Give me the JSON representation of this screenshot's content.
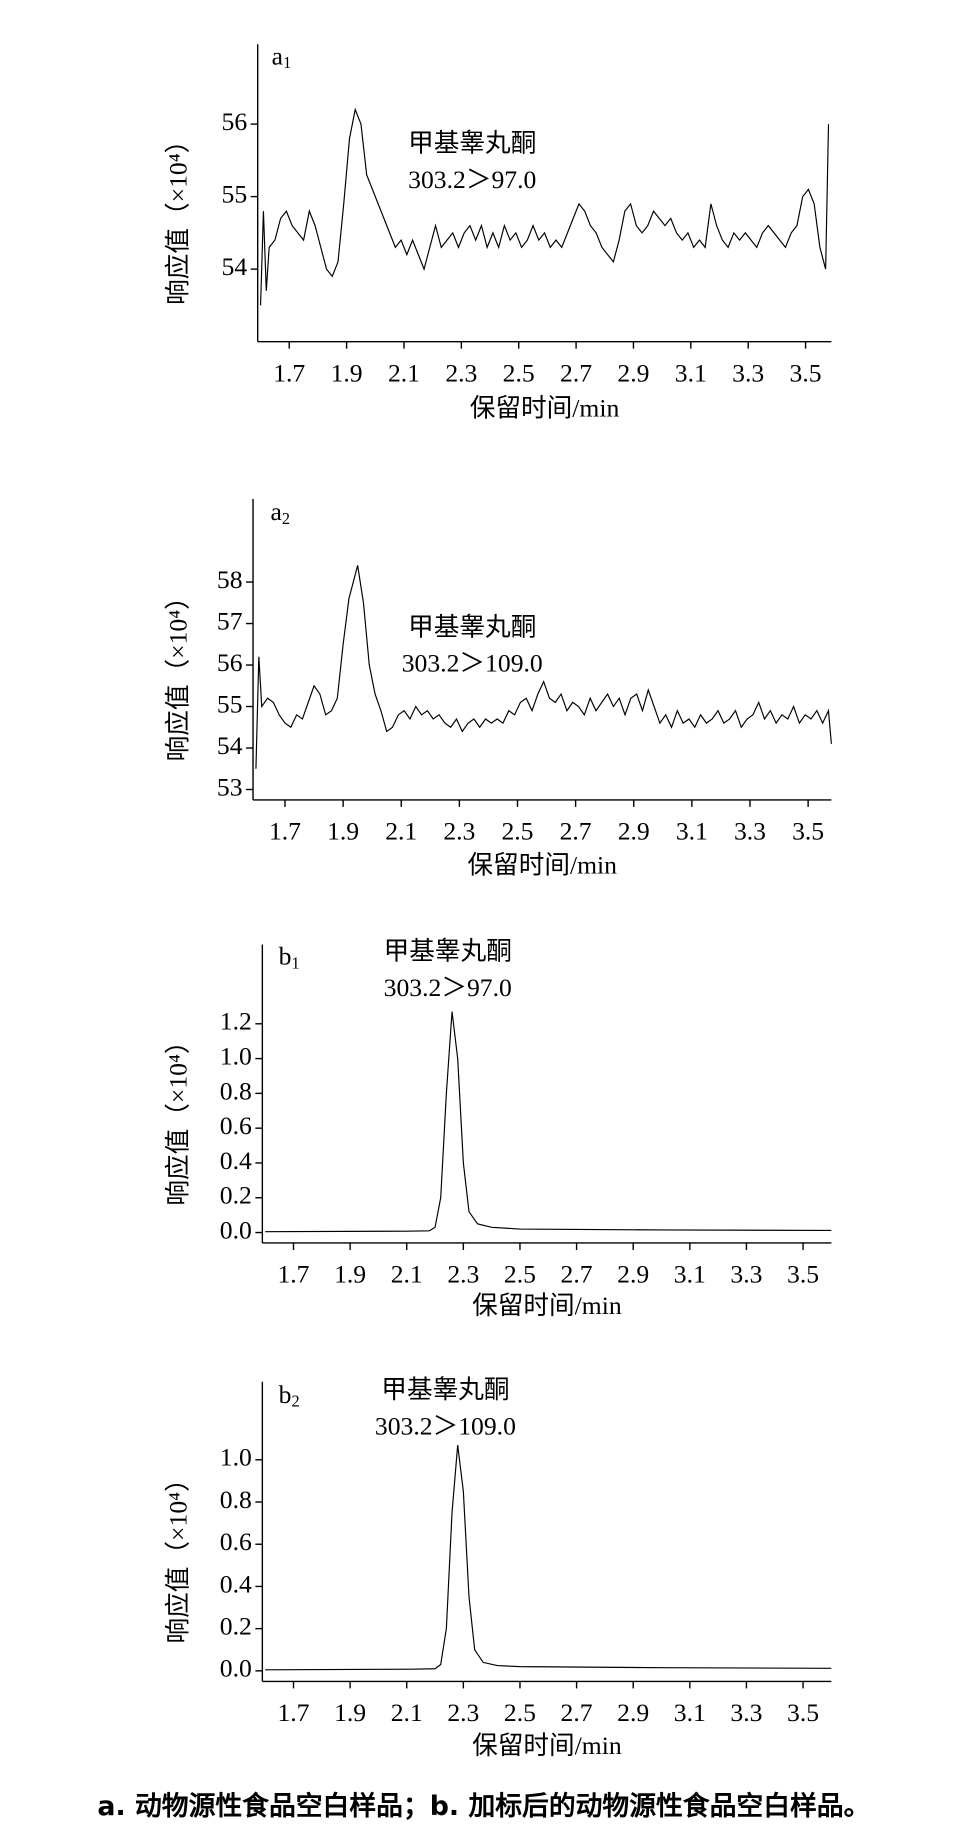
{
  "chart_data": [
    {
      "type": "line",
      "panel_letter": "a",
      "panel_index": "1",
      "compound": "甲基睾丸酮",
      "transition": "303.2＞97.0",
      "ylabel": "响应值（×10⁴）",
      "xlabel": "保留时间/min",
      "xlim": [
        1.59,
        3.59
      ],
      "ylim": [
        53.0,
        57.1
      ],
      "xticks": [
        1.7,
        1.9,
        2.1,
        2.3,
        2.5,
        2.7,
        2.9,
        3.1,
        3.3,
        3.5
      ],
      "yticks": [
        54,
        55,
        56
      ],
      "x": [
        1.6,
        1.61,
        1.62,
        1.63,
        1.65,
        1.67,
        1.69,
        1.71,
        1.73,
        1.75,
        1.77,
        1.79,
        1.81,
        1.83,
        1.85,
        1.87,
        1.89,
        1.91,
        1.93,
        1.95,
        1.97,
        1.99,
        2.01,
        2.03,
        2.05,
        2.07,
        2.09,
        2.11,
        2.13,
        2.15,
        2.17,
        2.19,
        2.21,
        2.23,
        2.25,
        2.27,
        2.29,
        2.31,
        2.33,
        2.35,
        2.37,
        2.39,
        2.41,
        2.43,
        2.45,
        2.47,
        2.49,
        2.51,
        2.53,
        2.55,
        2.57,
        2.59,
        2.61,
        2.63,
        2.65,
        2.67,
        2.69,
        2.71,
        2.73,
        2.75,
        2.77,
        2.79,
        2.81,
        2.83,
        2.85,
        2.87,
        2.89,
        2.91,
        2.93,
        2.95,
        2.97,
        2.99,
        3.01,
        3.03,
        3.05,
        3.07,
        3.09,
        3.11,
        3.13,
        3.15,
        3.17,
        3.19,
        3.21,
        3.23,
        3.25,
        3.27,
        3.29,
        3.31,
        3.33,
        3.35,
        3.37,
        3.39,
        3.41,
        3.43,
        3.45,
        3.47,
        3.49,
        3.51,
        3.53,
        3.55,
        3.57,
        3.58
      ],
      "values": [
        53.5,
        54.8,
        53.7,
        54.3,
        54.4,
        54.7,
        54.8,
        54.6,
        54.5,
        54.4,
        54.8,
        54.6,
        54.3,
        54.0,
        53.9,
        54.1,
        54.9,
        55.8,
        56.2,
        56.0,
        55.3,
        55.1,
        54.9,
        54.7,
        54.5,
        54.3,
        54.4,
        54.2,
        54.4,
        54.2,
        54.0,
        54.3,
        54.6,
        54.3,
        54.4,
        54.5,
        54.3,
        54.5,
        54.6,
        54.4,
        54.6,
        54.3,
        54.5,
        54.3,
        54.6,
        54.4,
        54.5,
        54.3,
        54.4,
        54.6,
        54.4,
        54.5,
        54.3,
        54.4,
        54.3,
        54.5,
        54.7,
        54.9,
        54.8,
        54.6,
        54.5,
        54.3,
        54.2,
        54.1,
        54.4,
        54.8,
        54.9,
        54.6,
        54.5,
        54.6,
        54.8,
        54.7,
        54.6,
        54.7,
        54.5,
        54.4,
        54.5,
        54.3,
        54.4,
        54.3,
        54.9,
        54.6,
        54.4,
        54.3,
        54.5,
        54.4,
        54.5,
        54.4,
        54.3,
        54.5,
        54.6,
        54.5,
        54.4,
        54.3,
        54.5,
        54.6,
        55.0,
        55.1,
        54.9,
        54.3,
        54.0,
        56.0
      ]
    },
    {
      "type": "line",
      "panel_letter": "a",
      "panel_index": "2",
      "compound": "甲基睾丸酮",
      "transition": "303.2＞109.0",
      "ylabel": "响应值（×10⁴）",
      "xlabel": "保留时间/min",
      "xlim": [
        1.59,
        3.58
      ],
      "ylim": [
        52.75,
        60.0
      ],
      "xticks": [
        1.7,
        1.9,
        2.1,
        2.3,
        2.5,
        2.7,
        2.9,
        3.1,
        3.3,
        3.5
      ],
      "yticks": [
        53,
        54,
        55,
        56,
        57,
        58
      ],
      "x": [
        1.6,
        1.61,
        1.62,
        1.64,
        1.66,
        1.68,
        1.7,
        1.72,
        1.74,
        1.76,
        1.78,
        1.8,
        1.82,
        1.84,
        1.86,
        1.88,
        1.9,
        1.92,
        1.95,
        1.97,
        1.99,
        2.01,
        2.03,
        2.05,
        2.07,
        2.09,
        2.11,
        2.13,
        2.15,
        2.17,
        2.19,
        2.21,
        2.23,
        2.25,
        2.27,
        2.29,
        2.31,
        2.33,
        2.35,
        2.37,
        2.39,
        2.41,
        2.43,
        2.45,
        2.47,
        2.49,
        2.51,
        2.53,
        2.55,
        2.57,
        2.59,
        2.61,
        2.63,
        2.65,
        2.67,
        2.69,
        2.71,
        2.73,
        2.75,
        2.77,
        2.79,
        2.81,
        2.83,
        2.85,
        2.87,
        2.89,
        2.91,
        2.93,
        2.95,
        2.97,
        2.99,
        3.01,
        3.03,
        3.05,
        3.07,
        3.09,
        3.11,
        3.13,
        3.15,
        3.17,
        3.19,
        3.21,
        3.23,
        3.25,
        3.27,
        3.29,
        3.31,
        3.33,
        3.35,
        3.37,
        3.39,
        3.41,
        3.43,
        3.45,
        3.47,
        3.49,
        3.51,
        3.53,
        3.55,
        3.57,
        3.58
      ],
      "values": [
        53.5,
        56.2,
        55.0,
        55.2,
        55.1,
        54.8,
        54.6,
        54.5,
        54.8,
        54.7,
        55.1,
        55.5,
        55.3,
        54.8,
        54.9,
        55.2,
        56.5,
        57.6,
        58.4,
        57.5,
        56.0,
        55.3,
        54.9,
        54.4,
        54.5,
        54.8,
        54.9,
        54.7,
        55.0,
        54.8,
        54.9,
        54.7,
        54.8,
        54.6,
        54.5,
        54.7,
        54.4,
        54.6,
        54.7,
        54.5,
        54.7,
        54.6,
        54.7,
        54.6,
        54.9,
        54.8,
        55.1,
        55.2,
        54.9,
        55.3,
        55.6,
        55.2,
        55.1,
        55.3,
        54.9,
        55.1,
        55.0,
        54.8,
        55.2,
        54.9,
        55.1,
        55.3,
        55.0,
        55.2,
        54.8,
        55.2,
        55.3,
        54.9,
        55.4,
        55.0,
        54.6,
        54.8,
        54.5,
        54.9,
        54.6,
        54.7,
        54.5,
        54.8,
        54.6,
        54.7,
        54.9,
        54.6,
        54.7,
        54.9,
        54.5,
        54.7,
        54.8,
        55.1,
        54.7,
        54.9,
        54.6,
        54.8,
        54.7,
        55.0,
        54.6,
        54.8,
        54.7,
        54.9,
        54.6,
        54.9,
        54.1
      ]
    },
    {
      "type": "line",
      "panel_letter": "b",
      "panel_index": "1",
      "compound": "甲基睾丸酮",
      "transition": "303.2＞97.0",
      "ylabel": "响应值（×10⁴）",
      "xlabel": "保留时间/min",
      "xlim": [
        1.59,
        3.6
      ],
      "ylim": [
        -0.06,
        1.656
      ],
      "xticks": [
        1.7,
        1.9,
        2.1,
        2.3,
        2.5,
        2.7,
        2.9,
        3.1,
        3.3,
        3.5
      ],
      "yticks": [
        {
          "value": 0,
          "label": "0.0"
        },
        0.2,
        0.4,
        0.6,
        0.8,
        {
          "value": 1,
          "label": "1.0"
        },
        1.2
      ],
      "x": [
        1.6,
        2.1,
        2.18,
        2.2,
        2.22,
        2.24,
        2.26,
        2.28,
        2.3,
        2.32,
        2.35,
        2.4,
        2.5,
        3.0,
        3.6
      ],
      "values": [
        0.005,
        0.008,
        0.01,
        0.03,
        0.2,
        0.8,
        1.27,
        1.0,
        0.4,
        0.12,
        0.05,
        0.03,
        0.02,
        0.015,
        0.012
      ]
    },
    {
      "type": "line",
      "panel_letter": "b",
      "panel_index": "2",
      "compound": "甲基睾丸酮",
      "transition": "303.2＞109.0",
      "ylabel": "响应值（×10⁴）",
      "xlabel": "保留时间/min",
      "xlim": [
        1.59,
        3.6
      ],
      "ylim": [
        -0.05,
        1.37
      ],
      "xticks": [
        1.7,
        1.9,
        2.1,
        2.3,
        2.5,
        2.7,
        2.9,
        3.1,
        3.3,
        3.5
      ],
      "yticks": [
        {
          "value": 0,
          "label": "0.0"
        },
        0.2,
        0.4,
        0.6,
        0.8,
        {
          "value": 1,
          "label": "1.0"
        }
      ],
      "x": [
        1.6,
        2.12,
        2.2,
        2.22,
        2.24,
        2.26,
        2.28,
        2.3,
        2.32,
        2.34,
        2.37,
        2.42,
        2.5,
        3.0,
        3.6
      ],
      "values": [
        0.005,
        0.008,
        0.01,
        0.03,
        0.2,
        0.75,
        1.07,
        0.85,
        0.35,
        0.1,
        0.04,
        0.025,
        0.02,
        0.015,
        0.012
      ]
    }
  ],
  "caption": "a. 动物源性食品空白样品；b. 加标后的动物源性食品空白样品。"
}
